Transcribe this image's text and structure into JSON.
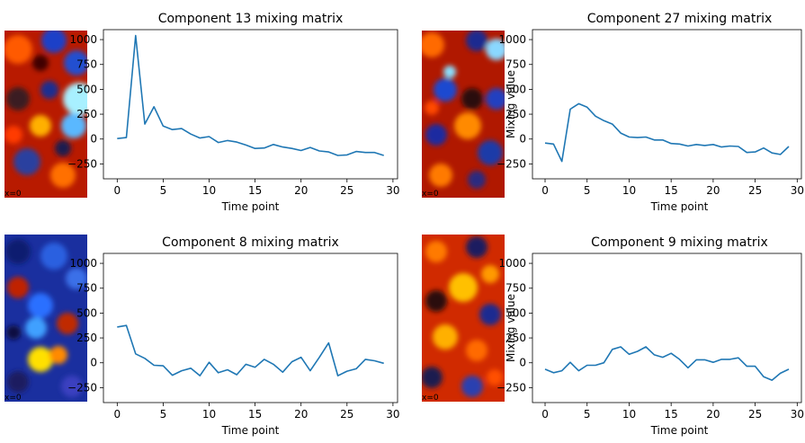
{
  "colors": {
    "series": "#1f77b4",
    "frame": "#000000"
  },
  "chart_data": [
    {
      "type": "line",
      "title": "Component 13 mixing matrix",
      "xlabel": "Time point",
      "ylabel": "",
      "brain_slice_label": "x=0",
      "brain_map": "hot-spot-right",
      "xlim": [
        -1.5,
        30.5
      ],
      "ylim": [
        -400,
        1100
      ],
      "xticks": [
        0,
        5,
        10,
        15,
        20,
        25,
        30
      ],
      "yticks": [
        -250,
        0,
        250,
        500,
        750,
        1000
      ],
      "x": [
        0,
        1,
        2,
        3,
        4,
        5,
        6,
        7,
        8,
        9,
        10,
        11,
        12,
        13,
        14,
        15,
        16,
        17,
        18,
        19,
        20,
        21,
        22,
        23,
        24,
        25,
        26,
        27,
        28,
        29
      ],
      "y": [
        5,
        15,
        1040,
        150,
        325,
        130,
        95,
        105,
        50,
        10,
        25,
        -35,
        -15,
        -30,
        -60,
        -95,
        -90,
        -55,
        -80,
        -95,
        -115,
        -85,
        -120,
        -130,
        -165,
        -160,
        -125,
        -135,
        -135,
        -165
      ]
    },
    {
      "type": "line",
      "title": "Component 27 mixing matrix",
      "xlabel": "Time point",
      "ylabel": "Mixing value",
      "brain_slice_label": "x=0",
      "brain_map": "mixed-stripe",
      "xlim": [
        -1.5,
        30.5
      ],
      "ylim": [
        -400,
        1100
      ],
      "xticks": [
        0,
        5,
        10,
        15,
        20,
        25,
        30
      ],
      "yticks": [
        -250,
        0,
        250,
        500,
        750,
        1000
      ],
      "x": [
        0,
        1,
        2,
        3,
        4,
        5,
        6,
        7,
        8,
        9,
        10,
        11,
        12,
        13,
        14,
        15,
        16,
        17,
        18,
        19,
        20,
        21,
        22,
        23,
        24,
        25,
        26,
        27,
        28,
        29
      ],
      "y": [
        -40,
        -50,
        -225,
        300,
        355,
        320,
        230,
        185,
        150,
        60,
        20,
        15,
        20,
        -10,
        -10,
        -45,
        -50,
        -70,
        -55,
        -65,
        -55,
        -80,
        -70,
        -75,
        -135,
        -130,
        -90,
        -140,
        -155,
        -75
      ]
    },
    {
      "type": "line",
      "title": "Component 8 mixing matrix",
      "xlabel": "Time point",
      "ylabel": "",
      "brain_slice_label": "x=0",
      "brain_map": "cold-top-hot-bottom",
      "xlim": [
        -1.5,
        30.5
      ],
      "ylim": [
        -400,
        1100
      ],
      "xticks": [
        0,
        5,
        10,
        15,
        20,
        25,
        30
      ],
      "yticks": [
        -250,
        0,
        250,
        500,
        750,
        1000
      ],
      "x": [
        0,
        1,
        2,
        3,
        4,
        5,
        6,
        7,
        8,
        9,
        10,
        11,
        12,
        13,
        14,
        15,
        16,
        17,
        18,
        19,
        20,
        21,
        22,
        23,
        24,
        25,
        26,
        27,
        28,
        29
      ],
      "y": [
        360,
        375,
        90,
        45,
        -25,
        -30,
        -125,
        -80,
        -55,
        -130,
        5,
        -100,
        -70,
        -120,
        -15,
        -45,
        35,
        -15,
        -95,
        10,
        55,
        -80,
        55,
        200,
        -130,
        -85,
        -60,
        35,
        20,
        -5
      ]
    },
    {
      "type": "line",
      "title": "Component 9 mixing matrix",
      "xlabel": "Time point",
      "ylabel": "Mixing value",
      "brain_slice_label": "x=0",
      "brain_map": "hot-dominant",
      "xlim": [
        -1.5,
        30.5
      ],
      "ylim": [
        -400,
        1100
      ],
      "xticks": [
        0,
        5,
        10,
        15,
        20,
        25,
        30
      ],
      "yticks": [
        -250,
        0,
        250,
        500,
        750,
        1000
      ],
      "x": [
        0,
        1,
        2,
        3,
        4,
        5,
        6,
        7,
        8,
        9,
        10,
        11,
        12,
        13,
        14,
        15,
        16,
        17,
        18,
        19,
        20,
        21,
        22,
        23,
        24,
        25,
        26,
        27,
        28,
        29
      ],
      "y": [
        -65,
        -100,
        -80,
        5,
        -80,
        -25,
        -25,
        0,
        135,
        160,
        85,
        115,
        160,
        80,
        55,
        95,
        35,
        -50,
        30,
        30,
        5,
        35,
        35,
        50,
        -35,
        -35,
        -140,
        -175,
        -105,
        -65
      ]
    }
  ]
}
